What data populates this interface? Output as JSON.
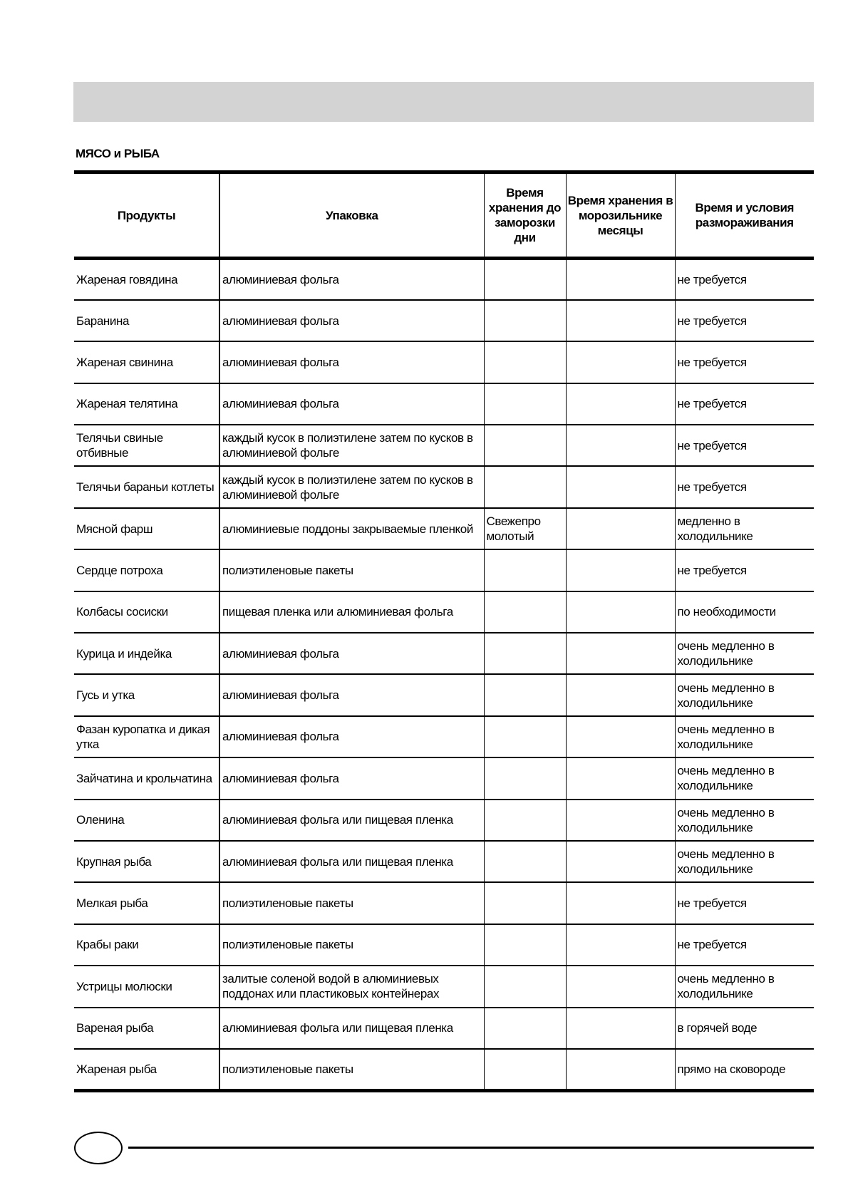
{
  "section_title": "МЯСО и РЫБА",
  "headers": [
    "Продукты",
    "Упаковка",
    "Время хранения до заморозки дни",
    "Время хранения в морозильнике месяцы",
    "Время и условия размораживания"
  ],
  "rows": [
    [
      "Жареная говядина",
      "алюминиевая фольга",
      "",
      "",
      "не требуется"
    ],
    [
      "Баранина",
      "алюминиевая фольга",
      "",
      "",
      "не требуется"
    ],
    [
      "Жареная свинина",
      "алюминиевая фольга",
      "",
      "",
      "не требуется"
    ],
    [
      "Жареная телятина",
      "алюминиевая фольга",
      "",
      "",
      "не требуется"
    ],
    [
      "Телячьи   свиные отбивные",
      "каждый кусок в полиэтилене  затем по кусков в алюминиевой фольге",
      "",
      "",
      "не требуется"
    ],
    [
      "Телячьи   бараньи котлеты",
      "каждый кусок в полиэтилене  затем по кусков в алюминиевой фольге",
      "",
      "",
      "не требуется"
    ],
    [
      "Мясной фарш",
      "алюминиевые поддоны  закрываемые пленкой",
      "Свежепро молотый",
      "",
      "медленно в холодильнике"
    ],
    [
      "Сердце  потроха",
      "полиэтиленовые пакеты",
      "",
      "",
      "не требуется"
    ],
    [
      "Колбасы  сосиски",
      "пищевая пленка или алюминиевая фольга",
      "",
      "",
      "по необходимости"
    ],
    [
      "Курица и индейка",
      "алюминиевая фольга",
      "",
      "",
      "очень медленно в холодильнике"
    ],
    [
      "Гусь и утка",
      "алюминиевая фольга",
      "",
      "",
      "очень медленно в холодильнике"
    ],
    [
      "Фазан  куропатка и дикая утка",
      "алюминиевая фольга",
      "",
      "",
      "очень медленно в холодильнике"
    ],
    [
      "Зайчатина и крольчатина",
      "алюминиевая фольга",
      "",
      "",
      "очень медленно в холодильнике"
    ],
    [
      "Оленина",
      "алюминиевая фольга или пищевая пленка",
      "",
      "",
      "очень медленно в холодильнике"
    ],
    [
      "Крупная рыба",
      "алюминиевая фольга или пищевая пленка",
      "",
      "",
      "очень медленно в холодильнике"
    ],
    [
      "Мелкая рыба",
      "полиэтиленовые пакеты",
      "",
      "",
      "не требуется"
    ],
    [
      "Крабы  раки",
      "полиэтиленовые пакеты",
      "",
      "",
      "не требуется"
    ],
    [
      "Устрицы  молюски",
      "залитые соленой водой в алюминиевых поддонах или пластиковых контейнерах",
      "",
      "",
      "очень медленно в холодильнике"
    ],
    [
      "Вареная рыба",
      "алюминиевая фольга или пищевая пленка",
      "",
      "",
      "в горячей воде"
    ],
    [
      "Жареная рыба",
      "полиэтиленовые пакеты",
      "",
      "",
      "прямо на сковороде"
    ]
  ]
}
